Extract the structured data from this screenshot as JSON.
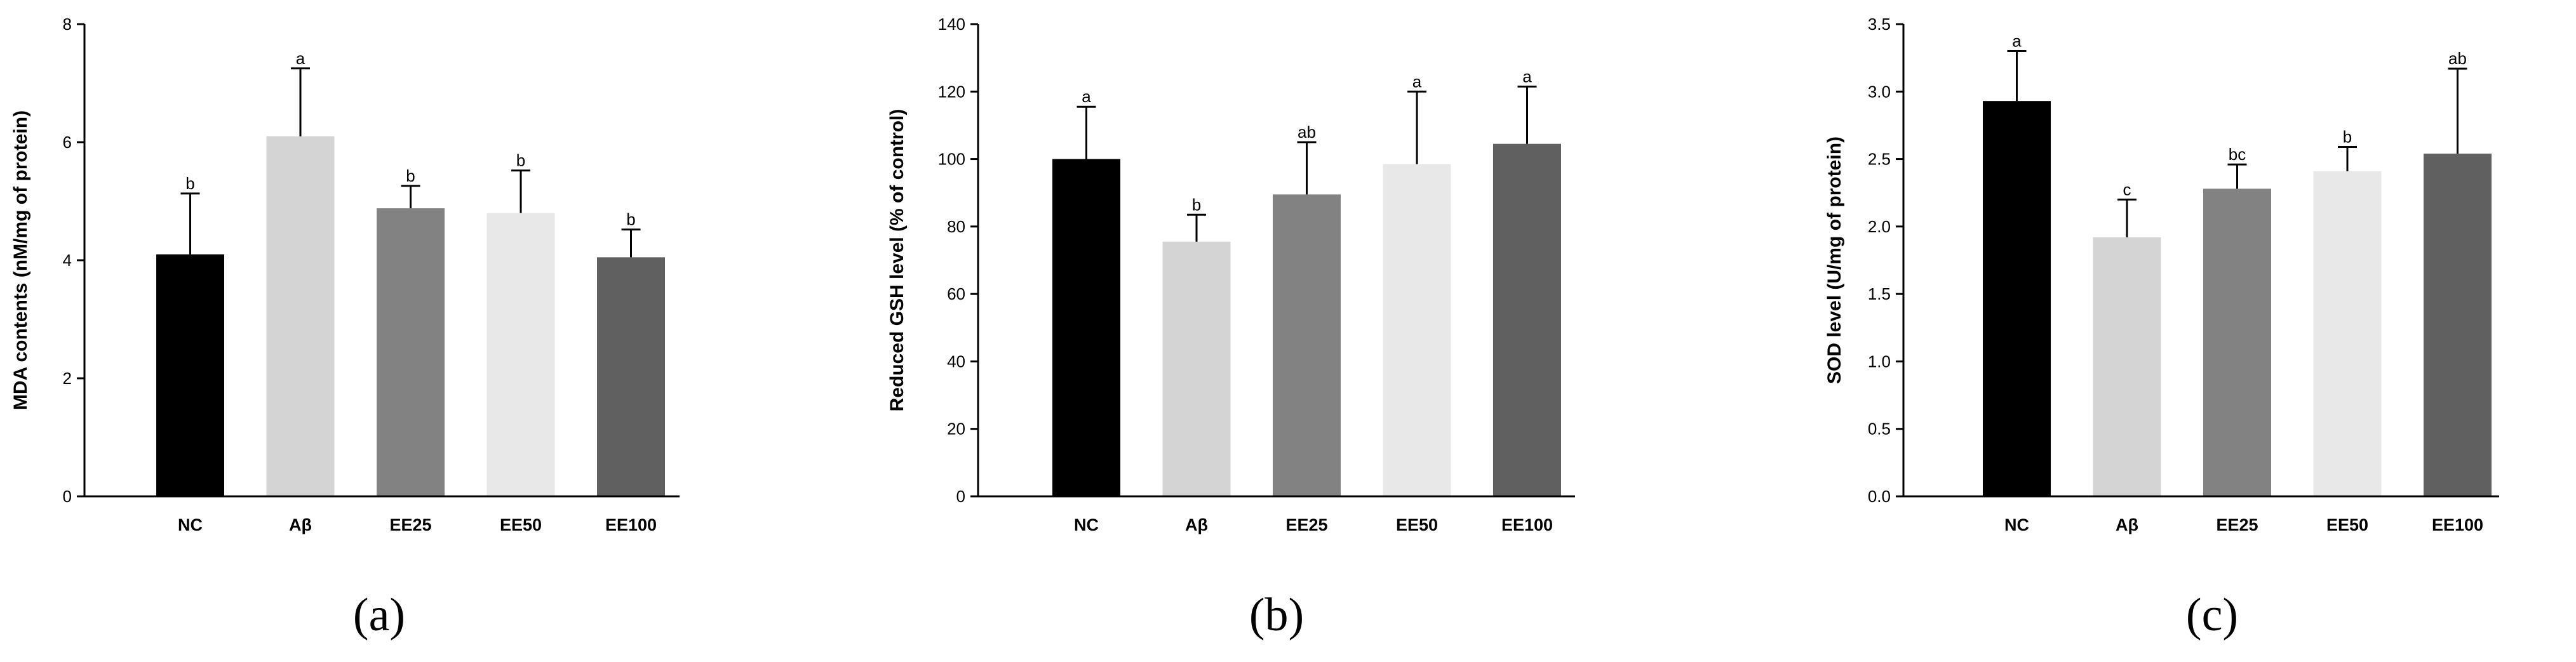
{
  "chart_data": [
    {
      "type": "bar",
      "panel": "a",
      "ylabel": "MDA contents (nM/mg of protein)",
      "ylim": [
        0,
        8
      ],
      "yticks": [
        0,
        2,
        4,
        6,
        8
      ],
      "ytick_labels": [
        "0",
        "2",
        "4",
        "6",
        "8"
      ],
      "categories": [
        "NC",
        "Aβ",
        "EE25",
        "EE50",
        "EE100"
      ],
      "values": [
        4.1,
        6.1,
        4.88,
        4.8,
        4.05
      ],
      "errors": [
        1.03,
        1.15,
        0.38,
        0.72,
        0.47
      ],
      "significance": [
        "b",
        "a",
        "b",
        "b",
        "b"
      ],
      "colors": [
        "#000000",
        "#d4d4d4",
        "#828282",
        "#e8e8e8",
        "#606060"
      ]
    },
    {
      "type": "bar",
      "panel": "b",
      "ylabel": "Reduced GSH level (% of control)",
      "ylim": [
        0,
        140
      ],
      "yticks": [
        0,
        20,
        40,
        60,
        80,
        100,
        120,
        140
      ],
      "ytick_labels": [
        "0",
        "20",
        "40",
        "60",
        "80",
        "100",
        "120",
        "140"
      ],
      "categories": [
        "NC",
        "Aβ",
        "EE25",
        "EE50",
        "EE100"
      ],
      "values": [
        100,
        75.5,
        89.5,
        98.5,
        104.5
      ],
      "errors": [
        15.5,
        8.0,
        15.5,
        21.5,
        17.0
      ],
      "significance": [
        "a",
        "b",
        "ab",
        "a",
        "a"
      ],
      "colors": [
        "#000000",
        "#d4d4d4",
        "#828282",
        "#e8e8e8",
        "#606060"
      ]
    },
    {
      "type": "bar",
      "panel": "c",
      "ylabel": "SOD level (U/mg of protein)",
      "ylim": [
        0,
        3.5
      ],
      "yticks": [
        0,
        0.5,
        1,
        1.5,
        2,
        2.5,
        3,
        3.5
      ],
      "ytick_labels": [
        "0.0",
        "0.5",
        "1.0",
        "1.5",
        "2.0",
        "2.5",
        "3.0",
        "3.5"
      ],
      "categories": [
        "NC",
        "Aβ",
        "EE25",
        "EE50",
        "EE100"
      ],
      "values": [
        2.93,
        1.92,
        2.28,
        2.41,
        2.54
      ],
      "errors": [
        0.37,
        0.28,
        0.18,
        0.18,
        0.63
      ],
      "significance": [
        "a",
        "c",
        "bc",
        "b",
        "ab"
      ],
      "colors": [
        "#000000",
        "#d4d4d4",
        "#828282",
        "#e8e8e8",
        "#606060"
      ]
    }
  ],
  "panel_labels": [
    "(a)",
    "(b)",
    "(c)"
  ]
}
